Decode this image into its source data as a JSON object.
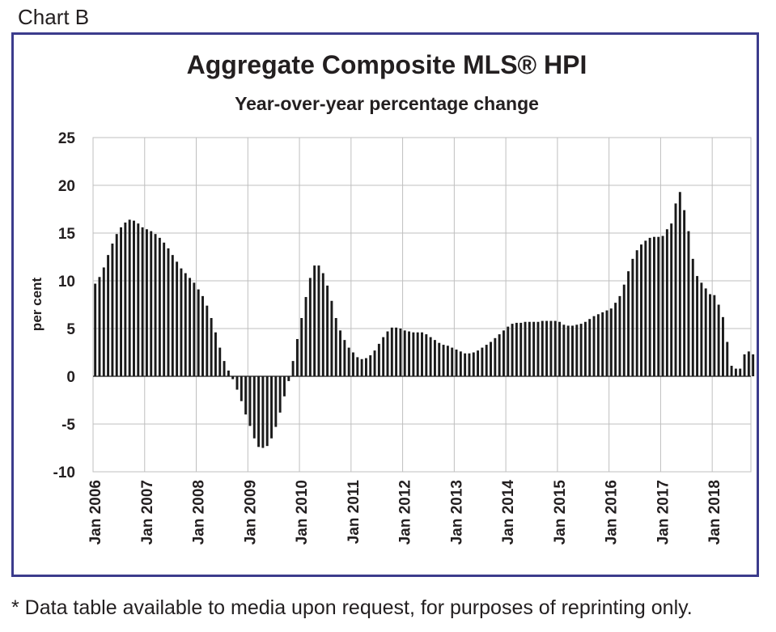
{
  "header": {
    "chart_label": "Chart B"
  },
  "footnote": "* Data table available to media upon request, for purposes of reprinting only.",
  "colors": {
    "frame": "#3c3c8c",
    "bars": "#1a1a1a",
    "grid": "#bfbfbf",
    "text": "#231f20"
  },
  "chart_data": {
    "type": "bar",
    "title": "Aggregate Composite MLS® HPI",
    "subtitle": "Year-over-year percentage change",
    "xlabel": "",
    "ylabel": "per cent",
    "ylim": [
      -10,
      25
    ],
    "yticks": [
      25,
      20,
      15,
      10,
      5,
      0,
      -5,
      -10
    ],
    "grid": true,
    "legend": "none",
    "xtick_labels": [
      "Jan 2006",
      "Jan 2007",
      "Jan 2008",
      "Jan 2009",
      "Jan 2010",
      "Jan 2011",
      "Jan 2012",
      "Jan 2013",
      "Jan 2014",
      "Jan 2015",
      "Jan 2016",
      "Jan 2017",
      "Jan 2018"
    ],
    "series": [
      {
        "values": [
          9.7,
          10.4,
          11.4,
          12.7,
          13.9,
          14.9,
          15.6,
          16.1,
          16.4,
          16.3,
          16.0,
          15.6,
          15.4,
          15.2,
          14.9,
          14.5,
          14.0,
          13.4,
          12.7,
          12.0,
          11.3,
          10.8,
          10.3,
          9.8,
          9.1,
          8.4,
          7.4,
          6.1,
          4.6,
          3.0,
          1.6,
          0.6,
          -0.3,
          -1.4,
          -2.6,
          -4.0,
          -5.2,
          -6.5,
          -7.4,
          -7.5,
          -7.3,
          -6.5,
          -5.3,
          -3.8,
          -2.1,
          -0.5,
          1.6,
          3.9,
          6.1,
          8.3,
          10.3,
          11.6,
          11.6,
          10.8,
          9.5,
          7.9,
          6.1,
          4.8,
          3.8,
          3.0,
          2.5,
          2.0,
          1.8,
          1.9,
          2.2,
          2.7,
          3.4,
          4.1,
          4.7,
          5.1,
          5.1,
          5.0,
          4.8,
          4.7,
          4.6,
          4.6,
          4.6,
          4.4,
          4.1,
          3.8,
          3.5,
          3.3,
          3.2,
          3.0,
          2.8,
          2.6,
          2.4,
          2.4,
          2.5,
          2.7,
          3.0,
          3.3,
          3.6,
          4.0,
          4.4,
          4.8,
          5.2,
          5.5,
          5.6,
          5.6,
          5.7,
          5.7,
          5.7,
          5.7,
          5.8,
          5.8,
          5.8,
          5.8,
          5.7,
          5.4,
          5.3,
          5.3,
          5.4,
          5.5,
          5.7,
          6.0,
          6.3,
          6.5,
          6.7,
          6.9,
          7.1,
          7.7,
          8.4,
          9.6,
          11.0,
          12.3,
          13.2,
          13.8,
          14.2,
          14.5,
          14.6,
          14.6,
          14.7,
          15.4,
          16.0,
          18.1,
          19.3,
          17.4,
          15.2,
          12.3,
          10.5,
          9.8,
          9.2,
          8.6,
          8.5,
          7.5,
          6.2,
          3.6,
          1.1,
          0.8,
          0.8,
          2.3,
          2.6,
          2.3
        ]
      }
    ]
  }
}
